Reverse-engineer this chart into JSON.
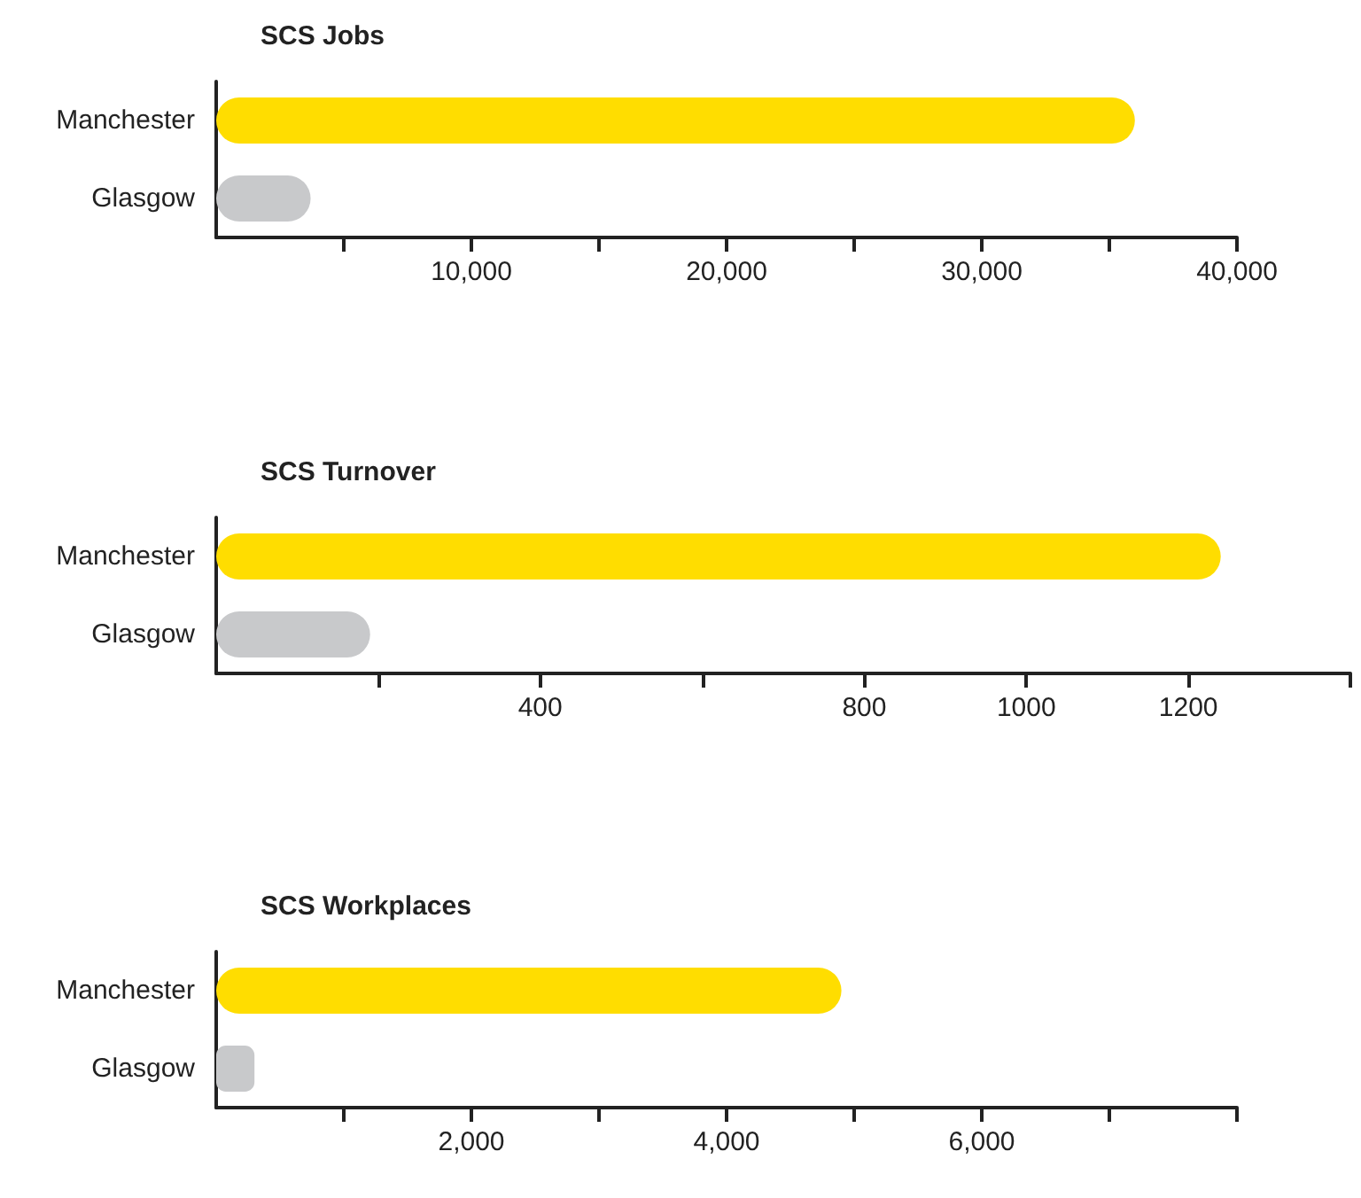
{
  "chart_data": [
    {
      "type": "bar",
      "orientation": "horizontal",
      "title": "SCS Jobs",
      "categories": [
        "Manchester",
        "Glasgow"
      ],
      "values": [
        36000,
        3700
      ],
      "colors": [
        "#ffdd00",
        "#c8c9cb"
      ],
      "xlim": [
        0,
        40000
      ],
      "xticks": [
        {
          "value": 5000,
          "label": null
        },
        {
          "value": 10000,
          "label": "10,000"
        },
        {
          "value": 15000,
          "label": null
        },
        {
          "value": 20000,
          "label": "20,000"
        },
        {
          "value": 25000,
          "label": null
        },
        {
          "value": 30000,
          "label": "30,000"
        },
        {
          "value": 35000,
          "label": null
        },
        {
          "value": 40000,
          "label": "40,000"
        }
      ],
      "grid": false
    },
    {
      "type": "bar",
      "orientation": "horizontal",
      "title": "SCS Turnover",
      "categories": [
        "Manchester",
        "Glasgow"
      ],
      "values": [
        1240,
        190
      ],
      "colors": [
        "#ffdd00",
        "#c8c9cb"
      ],
      "xlim": [
        0,
        1400
      ],
      "xticks": [
        {
          "value": 200,
          "label": null
        },
        400,
        {
          "value": 600,
          "label": null
        },
        800,
        1000,
        1200,
        {
          "value": 1400,
          "label": null
        }
      ],
      "grid": false
    },
    {
      "type": "bar",
      "orientation": "horizontal",
      "title": "SCS Workplaces",
      "categories": [
        "Manchester",
        "Glasgow"
      ],
      "values": [
        4900,
        300
      ],
      "colors": [
        "#ffdd00",
        "#c8c9cb"
      ],
      "xlim": [
        0,
        8000
      ],
      "xticks": [
        {
          "value": 1000,
          "label": null
        },
        {
          "value": 2000,
          "label": "2,000"
        },
        {
          "value": 3000,
          "label": null
        },
        {
          "value": 4000,
          "label": "4,000"
        },
        {
          "value": 5000,
          "label": null
        },
        {
          "value": 6000,
          "label": "6,000"
        },
        {
          "value": 7000,
          "label": null
        },
        {
          "value": 8000,
          "label": null
        }
      ],
      "grid": false
    }
  ]
}
